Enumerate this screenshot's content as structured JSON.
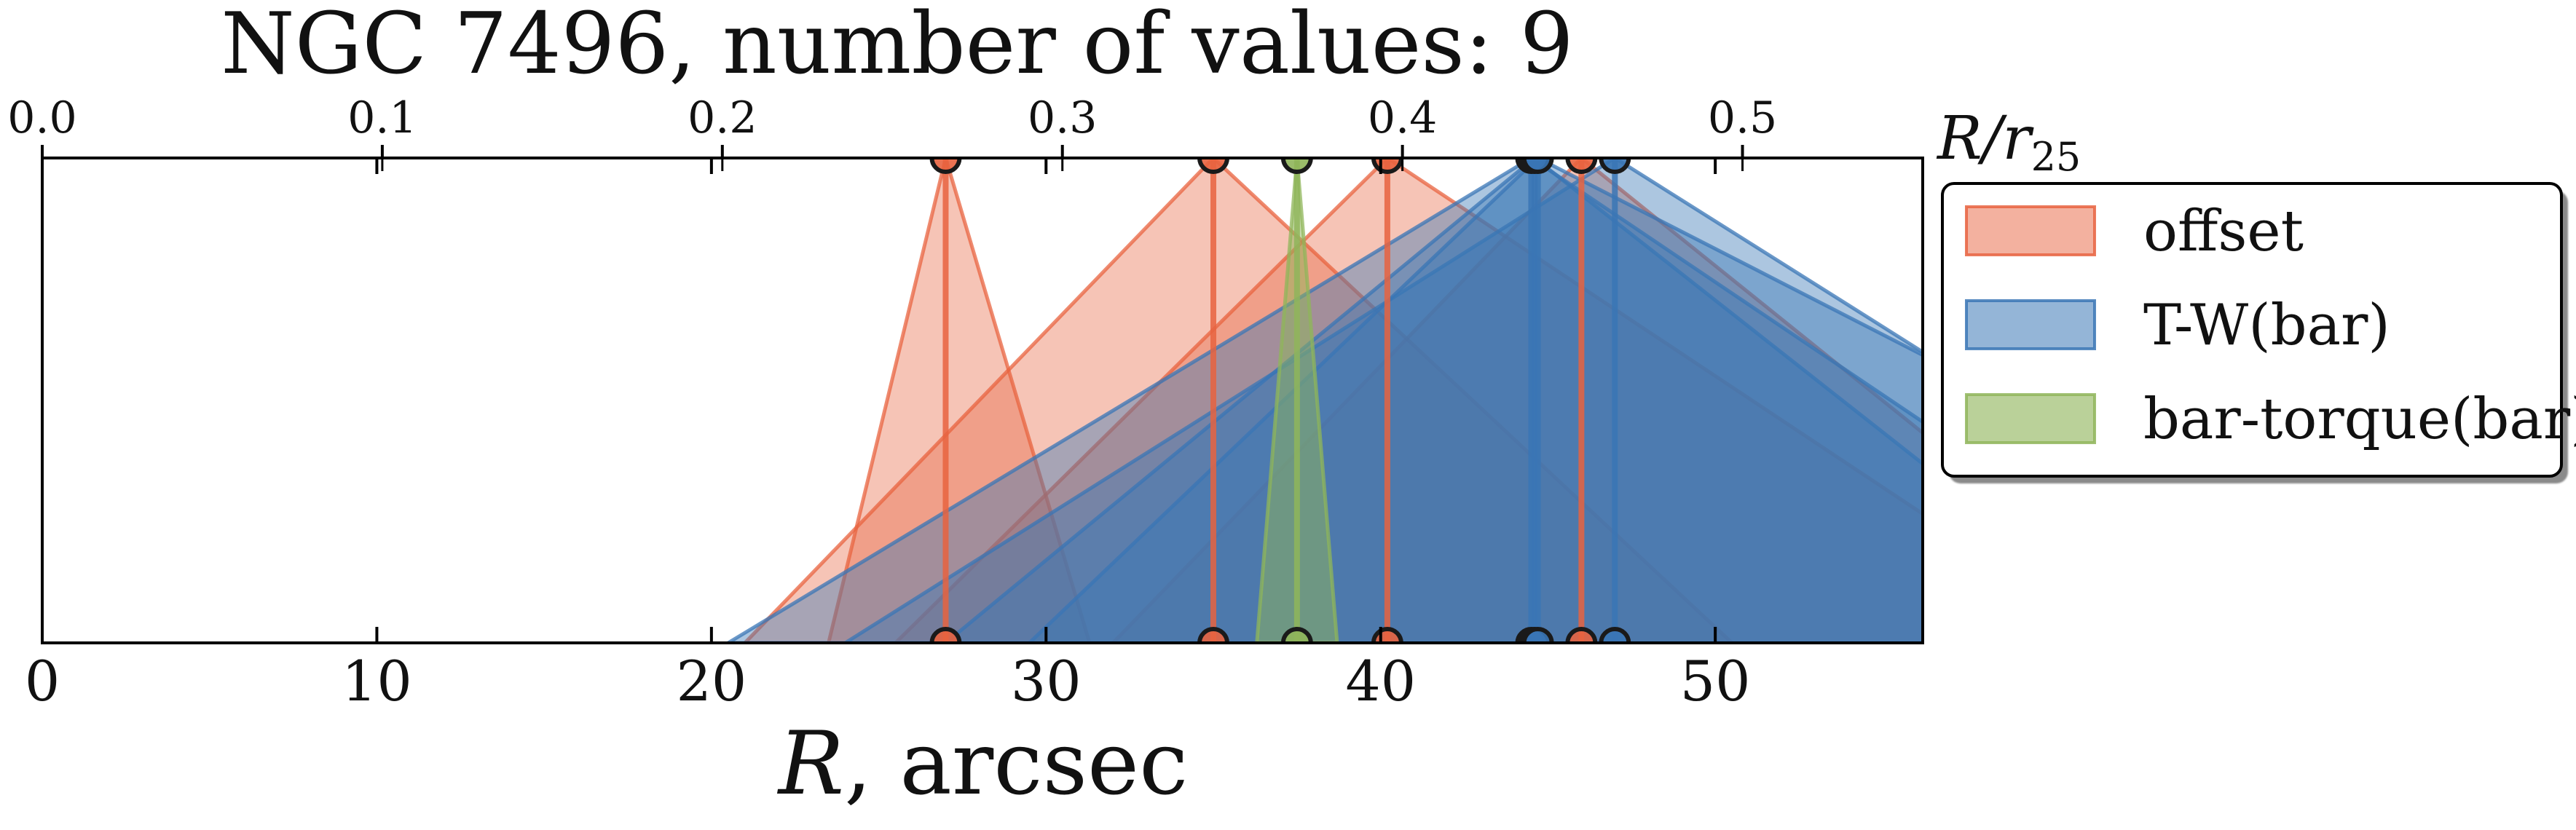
{
  "chart_data": {
    "type": "range-triangles",
    "title": "NGC 7496, number of values: 9",
    "xlabel": "R, arcsec",
    "xlabel_italic_part": "R",
    "xlabel_rest": ", arcsec",
    "top_axis_label": "R/r25",
    "top_axis_main": "R/r",
    "top_axis_sub": "25",
    "xlim": [
      0,
      56.2
    ],
    "top_xlim": [
      0,
      0.553
    ],
    "bottom_ticks": [
      0,
      10,
      20,
      30,
      40,
      50
    ],
    "bottom_tick_labels": [
      "0",
      "10",
      "20",
      "30",
      "40",
      "50"
    ],
    "top_ticks": [
      0.0,
      0.1,
      0.2,
      0.3,
      0.4,
      0.5
    ],
    "top_tick_labels": [
      "0.0",
      "0.1",
      "0.2",
      "0.3",
      "0.4",
      "0.5"
    ],
    "grid": false,
    "legend_position": "right-outside-top",
    "series": [
      {
        "name": "offset",
        "color": "#e8633f",
        "fill_opacity": 0.38,
        "points": [
          {
            "value": 27.0,
            "low": 23.5,
            "high": 31.3
          },
          {
            "value": 35.0,
            "low": 21.0,
            "high": 50.5
          },
          {
            "value": 40.2,
            "low": 25.5,
            "high": 62.0
          },
          {
            "value": 46.0,
            "low": 32.0,
            "high": 64.0
          }
        ]
      },
      {
        "name": "T-W(bar)",
        "color": "#3a76b5",
        "fill_opacity": 0.42,
        "points": [
          {
            "value": 44.5,
            "low": 20.5,
            "high": 66.0
          },
          {
            "value": 47.0,
            "low": 24.0,
            "high": 70.0
          },
          {
            "value": 44.6,
            "low": 27.0,
            "high": 63.0
          },
          {
            "value": 44.7,
            "low": 29.5,
            "high": 73.0
          }
        ]
      },
      {
        "name": "bar-torque(bar)",
        "color": "#8fb55a",
        "fill_opacity": 0.5,
        "points": [
          {
            "value": 37.5,
            "low": 36.3,
            "high": 38.7
          }
        ]
      }
    ]
  }
}
